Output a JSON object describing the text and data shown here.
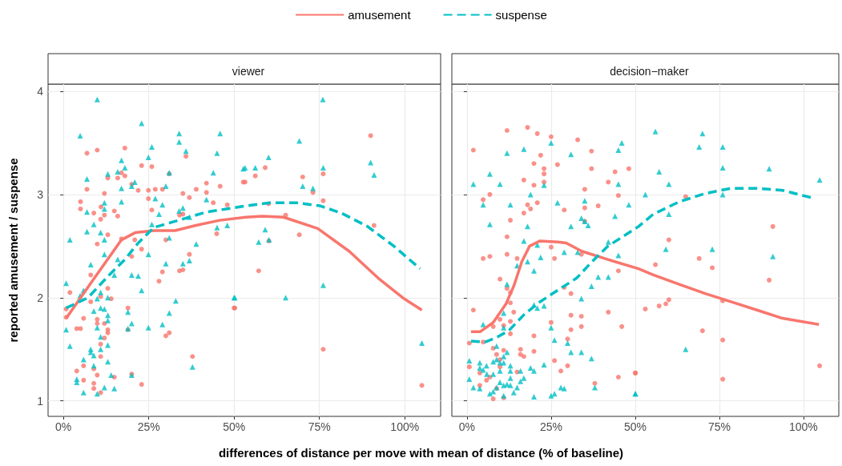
{
  "chart_data": [
    {
      "type": "scatter",
      "title": "viewer",
      "xlabel": "differences of distance per move with mean of distance (% of baseline)",
      "ylabel": "reported amusement / suspense",
      "xlim": [
        -4.5,
        110.5
      ],
      "ylim": [
        0.85,
        4.07
      ],
      "xticks": [
        {
          "value": 0,
          "label": "0%"
        },
        {
          "value": 25,
          "label": "25%"
        },
        {
          "value": 50,
          "label": "50%"
        },
        {
          "value": 75,
          "label": "75%"
        },
        {
          "value": 100,
          "label": "100%"
        }
      ],
      "yticks": [
        1,
        2,
        3,
        4
      ],
      "grid": true,
      "legend": "top",
      "series": [
        {
          "type": "scatter",
          "marker": "circle",
          "color": "#f8766d",
          "x": [
            6.9,
            9.9,
            18.0,
            6.9,
            5.0,
            5.0,
            8.9,
            12.0,
            13.0,
            15.9,
            17.0,
            18.0,
            11.0,
            12.0,
            10.9,
            14.9,
            15.9,
            13.0,
            9.9,
            8.0,
            1.9,
            0.8,
            0.8,
            5.9,
            8.0,
            10.9,
            13.0,
            14.0,
            3.9,
            5.0,
            9.9,
            9.9,
            12.0,
            13.0,
            13.0,
            12.0,
            10.9,
            10.9,
            5.9,
            3.9,
            5.9,
            8.9,
            9.9,
            8.9,
            8.9,
            10.9,
            14.9,
            20.0,
            22.9,
            18.9,
            18.9,
            17.0,
            20.0,
            20.9,
            22.9,
            22.9,
            20.0,
            21.9,
            24.9,
            24.9,
            25.9,
            26.9,
            29.0,
            25.9,
            30.0,
            29.0,
            28.0,
            30.0,
            31.0,
            31.0,
            35.0,
            36.9,
            34.0,
            35.0,
            36.9,
            34.0,
            35.0,
            37.8,
            35.9,
            38.9,
            41.9,
            41.9,
            43.9,
            45.9,
            48.0,
            44.9,
            52.7,
            50.0,
            53.2,
            56.2,
            59.1,
            60.1,
            65.1,
            69.1,
            57.2,
            60.2,
            70.1,
            73.1,
            76.1,
            76.1,
            90.0,
            91.0,
            50.2,
            76.1,
            105.0
          ],
          "values": [
            3.4,
            3.43,
            3.45,
            3.05,
            2.93,
            2.86,
            2.82,
            3.01,
            3.16,
            3.16,
            3.21,
            3.18,
            2.88,
            2.8,
            2.76,
            2.84,
            2.79,
            2.61,
            2.52,
            2.22,
            2.05,
            1.89,
            1.81,
            1.8,
            1.96,
            2.01,
            2.09,
            1.99,
            1.7,
            1.7,
            1.79,
            1.75,
            1.75,
            1.69,
            1.66,
            1.61,
            1.55,
            1.43,
            1.34,
            1.29,
            1.2,
            1.31,
            1.25,
            1.17,
            1.12,
            1.08,
            1.23,
            1.26,
            1.16,
            1.9,
            1.69,
            2.57,
            2.4,
            2.56,
            2.47,
            3.28,
            3.1,
            3.04,
            3.04,
            2.96,
            3.27,
            3.05,
            3.05,
            2.85,
            2.56,
            2.25,
            2.16,
            1.63,
            1.66,
            3.2,
            3.01,
            2.97,
            2.8,
            2.81,
            2.42,
            2.26,
            2.27,
            1.43,
            3.37,
            3.05,
            3.11,
            3.02,
            2.92,
            3.08,
            2.9,
            2.62,
            3.12,
            1.9,
            3.12,
            3.18,
            3.26,
            2.91,
            2.8,
            2.61,
            2.26,
            2.55,
            3.17,
            3.02,
            3.2,
            2.94,
            3.57,
            2.7,
            1.9,
            1.5,
            1.15
          ]
        },
        {
          "type": "scatter",
          "marker": "triangle",
          "color": "#00bfc4",
          "x": [
            9.9,
            22.9,
            4.9,
            33.9,
            33.9,
            45.9,
            25.9,
            35.9,
            45.0,
            24.9,
            17.0,
            18.0,
            13.0,
            15.9,
            6.9,
            17.0,
            20.0,
            20.9,
            31.0,
            43.9,
            52.7,
            30.0,
            26.9,
            29.0,
            12.0,
            12.0,
            17.0,
            6.9,
            41.9,
            33.9,
            35.0,
            28.0,
            36.9,
            45.0,
            48.0,
            8.9,
            6.9,
            25.9,
            31.0,
            10.9,
            12.0,
            1.9,
            38.9,
            12.0,
            24.9,
            8.0,
            15.9,
            14.9,
            20.0,
            21.9,
            30.0,
            35.0,
            36.9,
            22.9,
            0.8,
            5.9,
            4.9,
            10.9,
            9.9,
            13.0,
            32.9,
            50.0,
            8.9,
            10.9,
            12.0,
            13.0,
            13.0,
            18.9,
            31.0,
            9.9,
            18.9,
            20.0,
            24.9,
            29.0,
            0.8,
            1.9,
            10.9,
            13.0,
            10.9,
            8.0,
            8.9,
            8.0,
            5.9,
            13.0,
            8.9,
            37.8,
            3.9,
            3.9,
            14.0,
            20.0,
            12.0,
            14.9,
            5.9,
            9.9,
            76.0,
            69.1,
            60.1,
            53.2,
            56.2,
            76.1,
            90.0,
            91.0,
            70.1,
            73.1,
            59.1,
            57.2,
            60.2,
            76.1,
            50.2,
            65.1,
            105.0
          ],
          "values": [
            3.92,
            3.69,
            3.57,
            3.59,
            3.51,
            3.59,
            3.46,
            3.42,
            3.4,
            3.36,
            3.33,
            3.26,
            3.2,
            3.22,
            3.15,
            3.06,
            3.08,
            3.12,
            3.21,
            3.21,
            3.25,
            3.08,
            2.96,
            2.9,
            2.92,
            2.86,
            2.93,
            2.83,
            2.95,
            2.84,
            2.87,
            2.81,
            2.78,
            2.68,
            2.7,
            2.71,
            2.64,
            2.71,
            2.58,
            2.63,
            2.56,
            2.56,
            2.52,
            2.42,
            2.42,
            2.32,
            2.37,
            2.22,
            2.22,
            2.21,
            2.33,
            2.33,
            2.36,
            2.07,
            2.14,
            2.07,
            2.02,
            2.05,
            1.99,
            2.0,
            1.97,
            2.0,
            1.87,
            1.9,
            1.89,
            1.83,
            1.78,
            1.86,
            1.85,
            1.71,
            1.7,
            1.75,
            1.71,
            1.74,
            1.69,
            1.53,
            1.62,
            1.54,
            1.5,
            1.5,
            1.44,
            1.47,
            1.4,
            1.38,
            1.34,
            1.33,
            1.21,
            1.18,
            1.25,
            1.25,
            1.13,
            1.12,
            1.08,
            1.07,
            3.92,
            3.52,
            3.36,
            3.26,
            3.26,
            3.26,
            3.31,
            3.19,
            3.08,
            3.06,
            2.66,
            2.54,
            2.56,
            2.12,
            2.0,
            2.0,
            1.56
          ]
        },
        {
          "type": "line",
          "name": "amusement",
          "color": "#f8766d",
          "line_style": "solid",
          "marker": "none",
          "x": [
            0.8,
            8.0,
            17.0,
            21.0,
            26.5,
            32.7,
            38.8,
            45.8,
            53.5,
            58.3,
            64.5,
            74.5,
            83.7,
            92.2,
            99.8,
            105.0
          ],
          "values": [
            1.8,
            2.14,
            2.56,
            2.63,
            2.65,
            2.65,
            2.7,
            2.75,
            2.78,
            2.79,
            2.78,
            2.67,
            2.45,
            2.19,
            1.99,
            1.88
          ]
        },
        {
          "type": "line",
          "name": "suspense",
          "color": "#00bfc4",
          "line_style": "dashed",
          "marker": "none",
          "x": [
            0.8,
            7.2,
            13.4,
            18.0,
            21.9,
            26.5,
            32.7,
            41.9,
            53.5,
            60.6,
            68.3,
            75.2,
            81.4,
            89.1,
            96.8,
            104.5
          ],
          "values": [
            1.9,
            2.0,
            2.22,
            2.37,
            2.53,
            2.68,
            2.74,
            2.83,
            2.89,
            2.92,
            2.92,
            2.89,
            2.82,
            2.69,
            2.5,
            2.28
          ]
        }
      ]
    },
    {
      "type": "scatter",
      "title": "decision−maker",
      "xlim": [
        -4.5,
        110.5
      ],
      "ylim": [
        0.85,
        4.07
      ],
      "xticks": [
        {
          "value": 0,
          "label": "0%"
        },
        {
          "value": 25,
          "label": "25%"
        },
        {
          "value": 50,
          "label": "50%"
        },
        {
          "value": 75,
          "label": "75%"
        },
        {
          "value": 100,
          "label": "100%"
        }
      ],
      "yticks": [
        1,
        2,
        3,
        4
      ],
      "grid": true,
      "tick_labels": "x",
      "series": [
        {
          "type": "scatter",
          "marker": "circle",
          "color": "#f8766d",
          "x": [
            11.9,
            18.0,
            20.9,
            25.0,
            32.9,
            1.9,
            37.0,
            21.9,
            19.9,
            26.9,
            22.9,
            22.9,
            37.0,
            44.0,
            48.1,
            16.9,
            22.9,
            19.9,
            42.0,
            35.0,
            6.8,
            45.0,
            4.8,
            18.0,
            20.9,
            18.9,
            16.9,
            28.9,
            35.0,
            39.0,
            35.0,
            12.9,
            11.9,
            4.8,
            6.8,
            11.9,
            14.9,
            25.0,
            26.0,
            34.0,
            45.0,
            9.8,
            11.9,
            12.9,
            12.9,
            1.9,
            13.9,
            9.8,
            12.9,
            12.9,
            10.9,
            7.8,
            25.0,
            28.9,
            30.9,
            30.9,
            34.0,
            30.9,
            34.0,
            42.0,
            46.0,
            0.7,
            4.8,
            7.8,
            8.8,
            9.8,
            10.9,
            15.9,
            15.9,
            16.9,
            19.9,
            19.9,
            29.9,
            0.7,
            3.8,
            5.8,
            6.8,
            3.8,
            9.8,
            8.8,
            7.8,
            10.9,
            14.9,
            26.0,
            27.9,
            29.9,
            38.0,
            45.0,
            50.1,
            65.0,
            90.9,
            60.0,
            56.0,
            69.0,
            72.9,
            89.8,
            53.0,
            57.1,
            59.1,
            60.0,
            76.0,
            70.0,
            76.0,
            50.0,
            76.0,
            104.8
          ],
          "values": [
            3.62,
            3.65,
            3.59,
            3.56,
            3.53,
            3.43,
            3.42,
            3.38,
            3.3,
            3.29,
            3.25,
            3.2,
            3.25,
            3.22,
            3.25,
            3.14,
            3.12,
            3.09,
            3.12,
            3.05,
            3.0,
            2.99,
            2.95,
            2.9,
            2.92,
            2.86,
            2.82,
            2.85,
            2.87,
            2.89,
            2.74,
            2.75,
            2.59,
            2.38,
            2.4,
            2.42,
            2.38,
            2.49,
            2.38,
            2.42,
            2.26,
            2.18,
            2.09,
            2.05,
            1.95,
            1.88,
            1.86,
            1.79,
            1.77,
            1.65,
            1.73,
            1.72,
            1.76,
            2.1,
            2.04,
            1.83,
            1.82,
            1.69,
            1.72,
            1.86,
            1.72,
            1.56,
            1.57,
            1.51,
            1.45,
            1.4,
            1.49,
            1.5,
            1.45,
            1.43,
            1.63,
            1.48,
            1.6,
            1.33,
            1.27,
            1.2,
            1.23,
            1.15,
            1.33,
            1.12,
            1.02,
            1.03,
            1.28,
            1.39,
            1.29,
            1.34,
            1.17,
            1.23,
            1.27,
            2.98,
            2.69,
            2.56,
            2.32,
            2.38,
            2.29,
            2.17,
            1.89,
            1.92,
            1.94,
            1.98,
            1.97,
            1.68,
            1.59,
            1.27,
            1.21,
            1.34
          ]
        },
        {
          "type": "scatter",
          "marker": "triangle",
          "color": "#00bfc4",
          "x": [
            25.0,
            46.0,
            45.0,
            11.9,
            16.9,
            30.9,
            6.8,
            1.9,
            9.8,
            22.9,
            45.0,
            18.9,
            4.8,
            12.9,
            26.9,
            35.0,
            48.1,
            34.0,
            35.0,
            36.0,
            44.0,
            6.8,
            18.0,
            30.9,
            16.9,
            20.9,
            42.0,
            28.9,
            32.9,
            45.0,
            21.9,
            18.0,
            14.9,
            19.9,
            39.0,
            42.0,
            37.0,
            11.9,
            34.0,
            19.9,
            20.9,
            22.9,
            10.9,
            4.8,
            10.9,
            25.0,
            26.0,
            29.9,
            8.8,
            30.9,
            34.0,
            37.0,
            11.9,
            10.9,
            0.7,
            3.8,
            5.8,
            7.8,
            8.8,
            9.8,
            10.9,
            12.9,
            3.8,
            4.8,
            9.8,
            7.8,
            12.9,
            15.9,
            18.9,
            19.9,
            22.9,
            0.7,
            1.9,
            3.8,
            5.9,
            9.8,
            10.9,
            11.9,
            12.9,
            12.9,
            14.9,
            15.9,
            16.9,
            8.8,
            6.8,
            7.8,
            10.9,
            13.9,
            19.9,
            25.0,
            26.0,
            27.9,
            28.9,
            38.0,
            50.1,
            56.0,
            70.0,
            69.0,
            76.0,
            76.0,
            89.8,
            57.1,
            60.0,
            104.8,
            53.0,
            76.0,
            60.0,
            59.1,
            72.9,
            90.9,
            65.0,
            50.0
          ],
          "values": [
            3.5,
            3.5,
            3.43,
            3.4,
            3.44,
            3.39,
            3.2,
            3.1,
            3.1,
            3.09,
            3.1,
            3.0,
            2.9,
            2.9,
            2.92,
            2.94,
            2.9,
            2.77,
            2.74,
            2.7,
            2.79,
            2.71,
            2.69,
            2.69,
            2.55,
            2.51,
            2.54,
            2.44,
            2.44,
            2.41,
            2.39,
            2.35,
            2.31,
            2.26,
            2.2,
            2.2,
            2.11,
            2.13,
            1.99,
            1.93,
            1.9,
            1.92,
            1.85,
            1.74,
            1.71,
            1.71,
            1.59,
            1.56,
            1.53,
            1.47,
            1.47,
            1.41,
            1.47,
            1.43,
            1.39,
            1.37,
            1.34,
            1.38,
            1.4,
            1.37,
            1.37,
            1.34,
            1.32,
            1.3,
            1.29,
            1.26,
            1.29,
            1.29,
            1.32,
            1.29,
            1.35,
            1.21,
            1.13,
            1.12,
            1.26,
            1.18,
            1.15,
            1.16,
            1.22,
            1.15,
            1.13,
            1.19,
            1.22,
            1.13,
            1.07,
            1.09,
            1.05,
            1.08,
            1.04,
            1.05,
            1.07,
            1.13,
            1.12,
            1.13,
            1.07,
            3.61,
            3.59,
            3.46,
            3.46,
            3.26,
            3.25,
            3.22,
            3.1,
            3.14,
            3.0,
            3.0,
            2.81,
            2.47,
            2.47,
            2.4,
            1.5,
            1.07
          ]
        },
        {
          "type": "line",
          "color": "#f8766d",
          "line_style": "solid",
          "marker": "none",
          "x": [
            1.2,
            3.9,
            7.8,
            11.6,
            14.0,
            16.3,
            18.6,
            21.7,
            27.1,
            29.5,
            34.1,
            41.9,
            51.0,
            55.4,
            63.1,
            70.8,
            78.5,
            86.2,
            93.8,
            104.6
          ],
          "values": [
            1.67,
            1.67,
            1.76,
            1.94,
            2.12,
            2.35,
            2.5,
            2.55,
            2.54,
            2.53,
            2.45,
            2.37,
            2.28,
            2.22,
            2.13,
            2.04,
            1.96,
            1.88,
            1.8,
            1.74
          ]
        },
        {
          "type": "line",
          "color": "#00bfc4",
          "line_style": "dashed",
          "marker": "none",
          "x": [
            1.2,
            5.4,
            8.5,
            12.4,
            17.1,
            21.7,
            26.4,
            32.6,
            37.2,
            41.9,
            51.0,
            55.4,
            63.1,
            70.8,
            78.5,
            86.2,
            93.8,
            102.3
          ],
          "values": [
            1.58,
            1.57,
            1.61,
            1.68,
            1.84,
            1.96,
            2.06,
            2.19,
            2.35,
            2.5,
            2.69,
            2.81,
            2.93,
            3.01,
            3.06,
            3.06,
            3.04,
            2.97
          ]
        }
      ]
    }
  ]
}
